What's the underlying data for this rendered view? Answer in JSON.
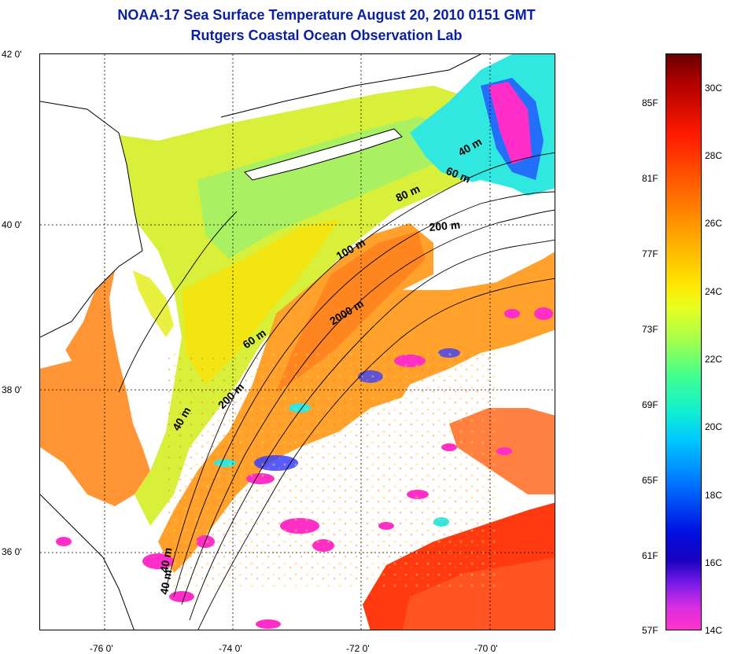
{
  "title_line1": "NOAA-17 Sea Surface Temperature August 20, 2010 0151 GMT",
  "title_line2": "Rutgers Coastal Ocean Observation Lab",
  "y_axis_labels": [
    "42 0'",
    "40 0'",
    "38 0'",
    "36 0'"
  ],
  "x_axis_labels": [
    "-76 0'",
    "-74 0'",
    "-72 0'",
    "-70 0'"
  ],
  "colorbar": {
    "fahrenheit_labels": [
      "85F",
      "81F",
      "77F",
      "73F",
      "69F",
      "65F",
      "61F",
      "57F"
    ],
    "celsius_labels": [
      "30C",
      "28C",
      "26C",
      "24C",
      "22C",
      "20C",
      "18C",
      "16C",
      "14C"
    ]
  },
  "contour_labels": {
    "c40_ne": "40 m",
    "c60_ne": "60 m",
    "c80": "80 m",
    "c200_ne": "200 m",
    "c100": "100 m",
    "c2000": "2000 m",
    "c60_mid": "60 m",
    "c200_mid": "200 m",
    "c40_mid": "40 m",
    "c40_s1": "40 m",
    "c40_s2": "40 m"
  }
}
